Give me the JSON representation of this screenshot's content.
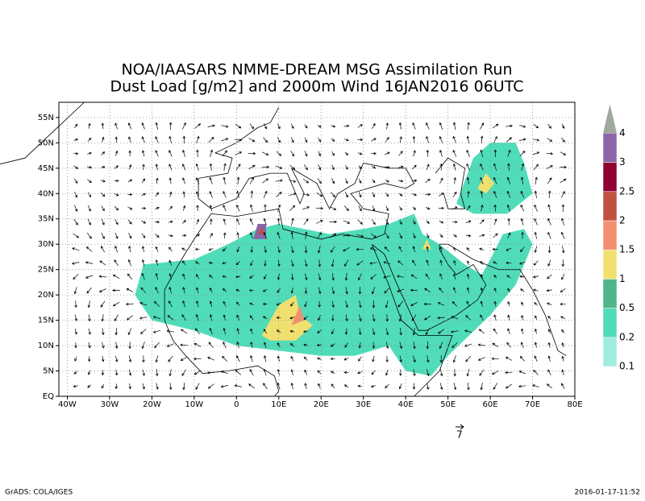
{
  "title": [
    "NOA/IAASARS NMME-DREAM MSG Assimilation Run",
    "Dust Load [g/m2] and 2000m Wind 16JAN2016 06UTC"
  ],
  "map": {
    "lon_range": [
      -42,
      80
    ],
    "lat_range": [
      0,
      58
    ],
    "lon_ticks": [
      {
        "value": -40,
        "label": "40W"
      },
      {
        "value": -30,
        "label": "30W"
      },
      {
        "value": -20,
        "label": "20W"
      },
      {
        "value": -10,
        "label": "10W"
      },
      0,
      {
        "value": 10,
        "label": "10E"
      },
      {
        "value": 20,
        "label": "20E"
      },
      {
        "value": 30,
        "label": "30E"
      },
      {
        "value": 40,
        "label": "40E"
      },
      {
        "value": 50,
        "label": "50E"
      },
      {
        "value": 60,
        "label": "60E"
      },
      {
        "value": 70,
        "label": "70E"
      },
      {
        "value": 80,
        "label": "80E"
      }
    ],
    "lat_ticks": [
      {
        "value": 0,
        "label": "EQ"
      },
      {
        "value": 5,
        "label": "5N"
      },
      {
        "value": 10,
        "label": "10N"
      },
      {
        "value": 15,
        "label": "15N"
      },
      {
        "value": 20,
        "label": "20N"
      },
      {
        "value": 25,
        "label": "25N"
      },
      {
        "value": 30,
        "label": "30N"
      },
      {
        "value": 35,
        "label": "35N"
      },
      {
        "value": 40,
        "label": "40N"
      },
      {
        "value": 45,
        "label": "45N"
      },
      {
        "value": 50,
        "label": "50N"
      },
      {
        "value": 55,
        "label": "55N"
      }
    ],
    "grid": true
  },
  "colorbar": {
    "levels": [
      0.1,
      0.2,
      0.5,
      1,
      1.5,
      2,
      2.5,
      3,
      4
    ],
    "colors": [
      "#a0ece0",
      "#50dcb8",
      "#50b48c",
      "#f0e070",
      "#f09070",
      "#c05040",
      "#900030",
      "#8c64a8",
      "#a0a8a0"
    ]
  },
  "wind_scale": 7,
  "footer": {
    "left": "GrADS: COLA/IGES",
    "right": "2016-01-17-11:52"
  }
}
